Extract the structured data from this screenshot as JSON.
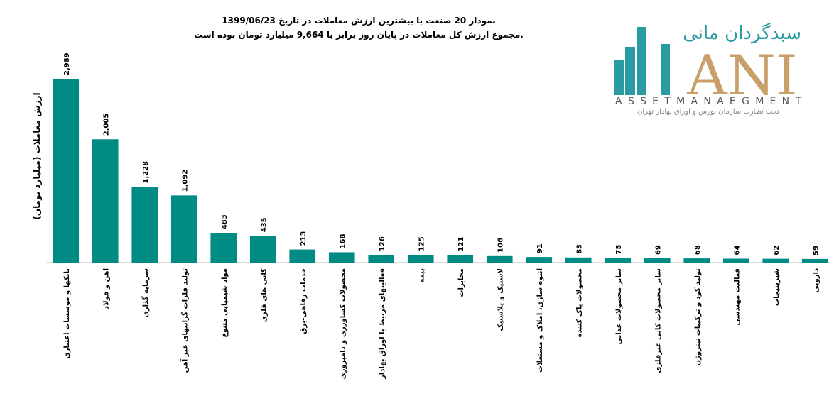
{
  "chart_data": {
    "type": "bar",
    "title": "نمودار  20 صنعت با بیشترین ارزش معاملات در تاریخ 1399/06/23",
    "subtitle": "مجموع ارزش  کل معاملات در پایان روز برابر با 9,664 میلیارد تومان بوده است.",
    "y_label": "ارزش معاملات (میلیارد تومان)",
    "color": "#008b84",
    "categories": [
      "بانکها و موسسات اعتباری",
      "اهن و فولاد",
      "سرمایه گذاری",
      "تولید فلزات گرانبهای غیر آهن",
      "مواد شیمیایی متنوع",
      "کانی های فلزی",
      "خدمات رفاهی-برق",
      "محصولات کشاورزی و دامپروری",
      "فعالیتهای مرتبط با اوراق بهادار",
      "بیمه",
      "مخابرات",
      "لاستیک و پلاستیک",
      "انبوه سازی، املاک و مستغلات",
      "محصولات پاک کننده",
      "سایر محصولات غذایی",
      "سایر محصولات کانی غیرفلزی",
      "تولید کود و ترکیبات نیتروژن",
      "فعالیت مهندسی",
      "شیرینیجات",
      "دارویی"
    ],
    "values": [
      2989,
      2005,
      1228,
      1092,
      483,
      435,
      213,
      168,
      126,
      125,
      121,
      106,
      91,
      83,
      75,
      69,
      68,
      64,
      62,
      59
    ],
    "value_labels": [
      "2,989",
      "2,005",
      "1,228",
      "1,092",
      "483",
      "435",
      "213",
      "168",
      "126",
      "125",
      "121",
      "106",
      "91",
      "83",
      "75",
      "69",
      "68",
      "64",
      "62",
      "59"
    ]
  },
  "logo": {
    "name": "سبدگردان مانی",
    "mark": "ANI",
    "english": "ASSETMANAEGMENT",
    "note": "تحت نظارت سازمان بورس و اوراق بهادار تهران"
  }
}
